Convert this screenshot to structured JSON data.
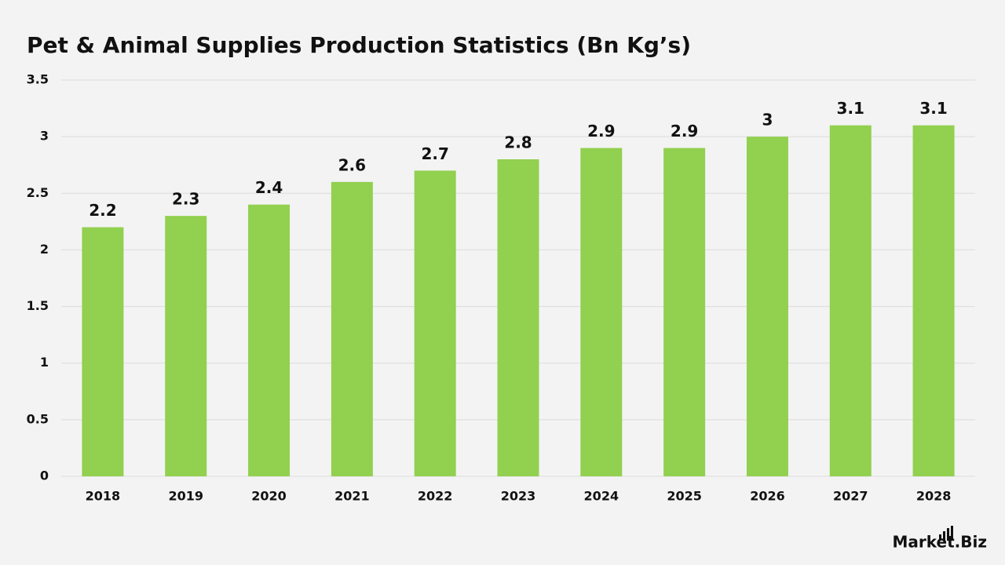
{
  "chart_data": {
    "type": "bar",
    "title": "Pet & Animal Supplies Production Statistics (Bn Kg’s)",
    "categories": [
      "2018",
      "2019",
      "2020",
      "2021",
      "2022",
      "2023",
      "2024",
      "2025",
      "2026",
      "2027",
      "2028"
    ],
    "values": [
      2.2,
      2.3,
      2.4,
      2.6,
      2.7,
      2.8,
      2.9,
      2.9,
      3,
      3.1,
      3.1
    ],
    "color": "#92d050",
    "ylim": [
      0,
      3.5
    ],
    "yticks": [
      0,
      0.5,
      1,
      1.5,
      2,
      2.5,
      3,
      3.5
    ],
    "grid": true
  },
  "logo": "Market.Biz"
}
